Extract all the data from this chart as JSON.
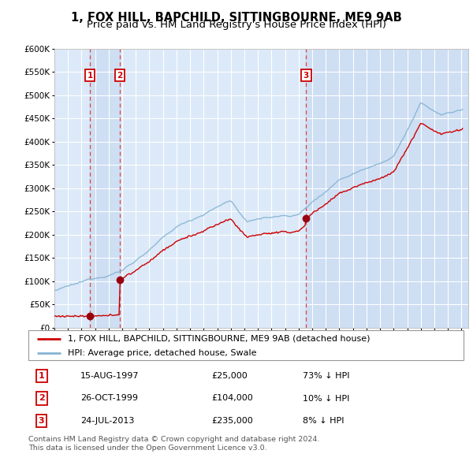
{
  "title": "1, FOX HILL, BAPCHILD, SITTINGBOURNE, ME9 9AB",
  "subtitle": "Price paid vs. HM Land Registry's House Price Index (HPI)",
  "ylim": [
    0,
    600000
  ],
  "yticks": [
    0,
    50000,
    100000,
    150000,
    200000,
    250000,
    300000,
    350000,
    400000,
    450000,
    500000,
    550000,
    600000
  ],
  "ytick_labels": [
    "£0",
    "£50K",
    "£100K",
    "£150K",
    "£200K",
    "£250K",
    "£300K",
    "£350K",
    "£400K",
    "£450K",
    "£500K",
    "£550K",
    "£600K"
  ],
  "xlim_start": 1995.0,
  "xlim_end": 2025.5,
  "xticks": [
    1995,
    1996,
    1997,
    1998,
    1999,
    2000,
    2001,
    2002,
    2003,
    2004,
    2005,
    2006,
    2007,
    2008,
    2009,
    2010,
    2011,
    2012,
    2013,
    2014,
    2015,
    2016,
    2017,
    2018,
    2019,
    2020,
    2021,
    2022,
    2023,
    2024,
    2025
  ],
  "background_color": "#dce9f8",
  "grid_color": "#ffffff",
  "sale_line_color": "#cc0000",
  "hpi_line_color": "#85b4d4",
  "marker_color": "#99000d",
  "vline_color": "#dd4444",
  "annotation_box_color": "#cc0000",
  "shade_color": "#c5d8f0",
  "purchases": [
    {
      "label": "1",
      "date_year": 1997.62,
      "price": 25000
    },
    {
      "label": "2",
      "date_year": 1999.82,
      "price": 104000
    },
    {
      "label": "3",
      "date_year": 2013.55,
      "price": 235000
    }
  ],
  "legend_line1": "1, FOX HILL, BAPCHILD, SITTINGBOURNE, ME9 9AB (detached house)",
  "legend_line2": "HPI: Average price, detached house, Swale",
  "table_data": [
    [
      "1",
      "15-AUG-1997",
      "£25,000",
      "73% ↓ HPI"
    ],
    [
      "2",
      "26-OCT-1999",
      "£104,000",
      "10% ↓ HPI"
    ],
    [
      "3",
      "24-JUL-2013",
      "£235,000",
      "8% ↓ HPI"
    ]
  ],
  "footer": "Contains HM Land Registry data © Crown copyright and database right 2024.\nThis data is licensed under the Open Government Licence v3.0.",
  "title_fontsize": 10.5,
  "subtitle_fontsize": 9.5,
  "tick_fontsize": 7.5
}
